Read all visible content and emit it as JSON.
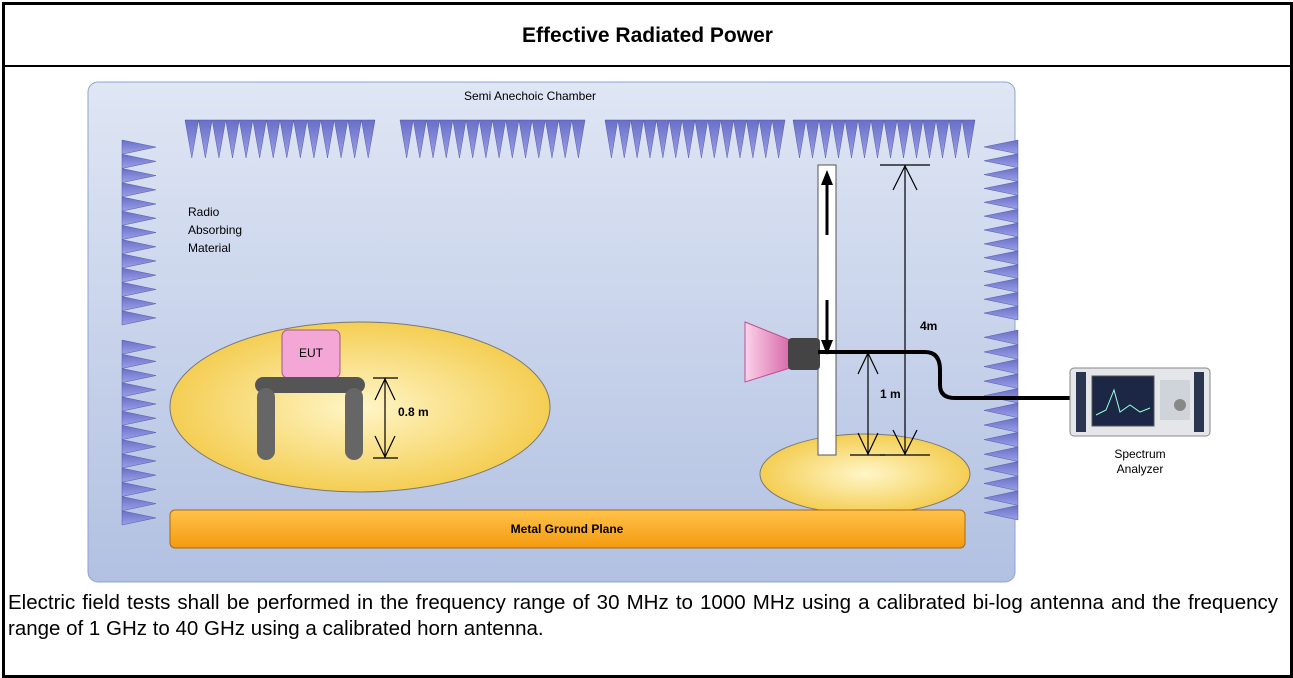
{
  "header": {
    "title": "Effective Radiated Power"
  },
  "diagram": {
    "chamber_label": "Semi Anechoic Chamber",
    "absorber_label": [
      "Radio",
      "Absorbing",
      "Material"
    ],
    "eut_label": "EUT",
    "table_height_label": "0.8 m",
    "mast_max_label": "4m",
    "mast_min_label": "1 m",
    "analyzer_label": [
      "Spectrum",
      "Analyzer"
    ],
    "ground_plane_label": "Metal Ground Plane"
  },
  "description": "Electric field tests shall be performed in the frequency range of 30 MHz to 1000 MHz using a calibrated bi-log antenna and the frequency range of 1 GHz to 40 GHz using a calibrated horn antenna."
}
